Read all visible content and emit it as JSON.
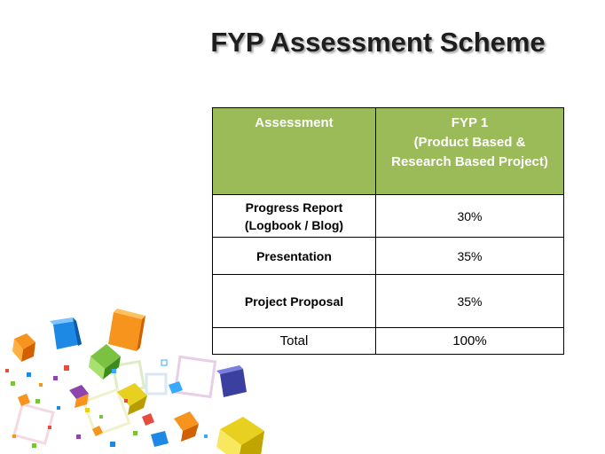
{
  "title": "FYP Assessment Scheme",
  "table": {
    "headers": {
      "assessment": "Assessment",
      "fyp1_line1": "FYP 1",
      "fyp1_line2": "(Product Based &",
      "fyp1_line3": "Research Based Project)"
    },
    "rows": [
      {
        "name_line1": "Progress Report",
        "name_line2": "(Logbook / Blog)",
        "value": "30%"
      },
      {
        "name_line1": "Presentation",
        "value": "35%"
      },
      {
        "name_line1": "Project Proposal",
        "value": "35%"
      }
    ],
    "total": {
      "label": "Total",
      "value": "100%"
    }
  },
  "colors": {
    "header_bg": "#9bbb59",
    "header_text": "#ffffff",
    "title_text": "#1e1e1e"
  },
  "decoration": "colorful-cubes-illustration"
}
